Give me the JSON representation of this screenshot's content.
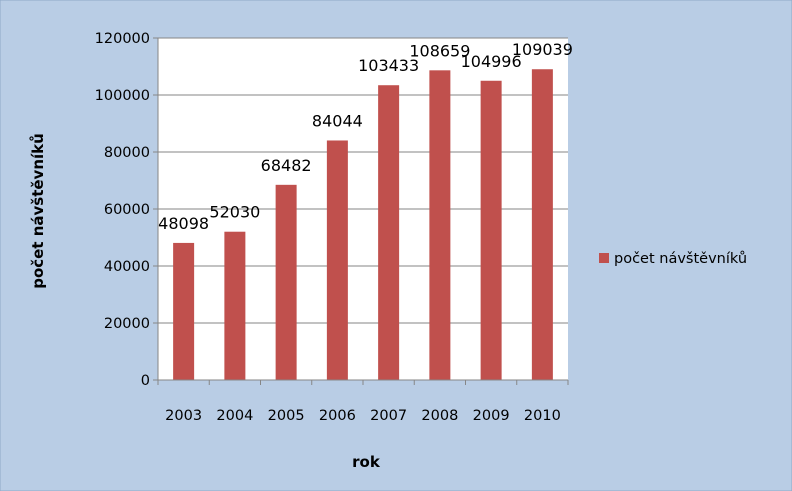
{
  "chart_data": {
    "type": "bar",
    "categories": [
      "2003",
      "2004",
      "2005",
      "2006",
      "2007",
      "2008",
      "2009",
      "2010"
    ],
    "series": [
      {
        "name": "počet návštěvníků",
        "values": [
          48098,
          52030,
          68482,
          84044,
          103433,
          108659,
          104996,
          109039
        ]
      }
    ],
    "data_labels": [
      "48098",
      "52030",
      "68482",
      "84044",
      "103433",
      "108659",
      "104996",
      "109039"
    ],
    "xlabel": "rok",
    "ylabel": "počet návštěvníků",
    "ylim": [
      0,
      120000
    ],
    "yticks": [
      0,
      20000,
      40000,
      60000,
      80000,
      100000,
      120000
    ],
    "ytick_labels": [
      "0",
      "20000",
      "40000",
      "60000",
      "80000",
      "100000",
      "120000"
    ],
    "grid": true,
    "legend_position": "right",
    "colors": {
      "bar": "#C0504D",
      "background": "#B9CDE5",
      "plot_background": "#FFFFFF",
      "gridline": "#868686"
    }
  }
}
